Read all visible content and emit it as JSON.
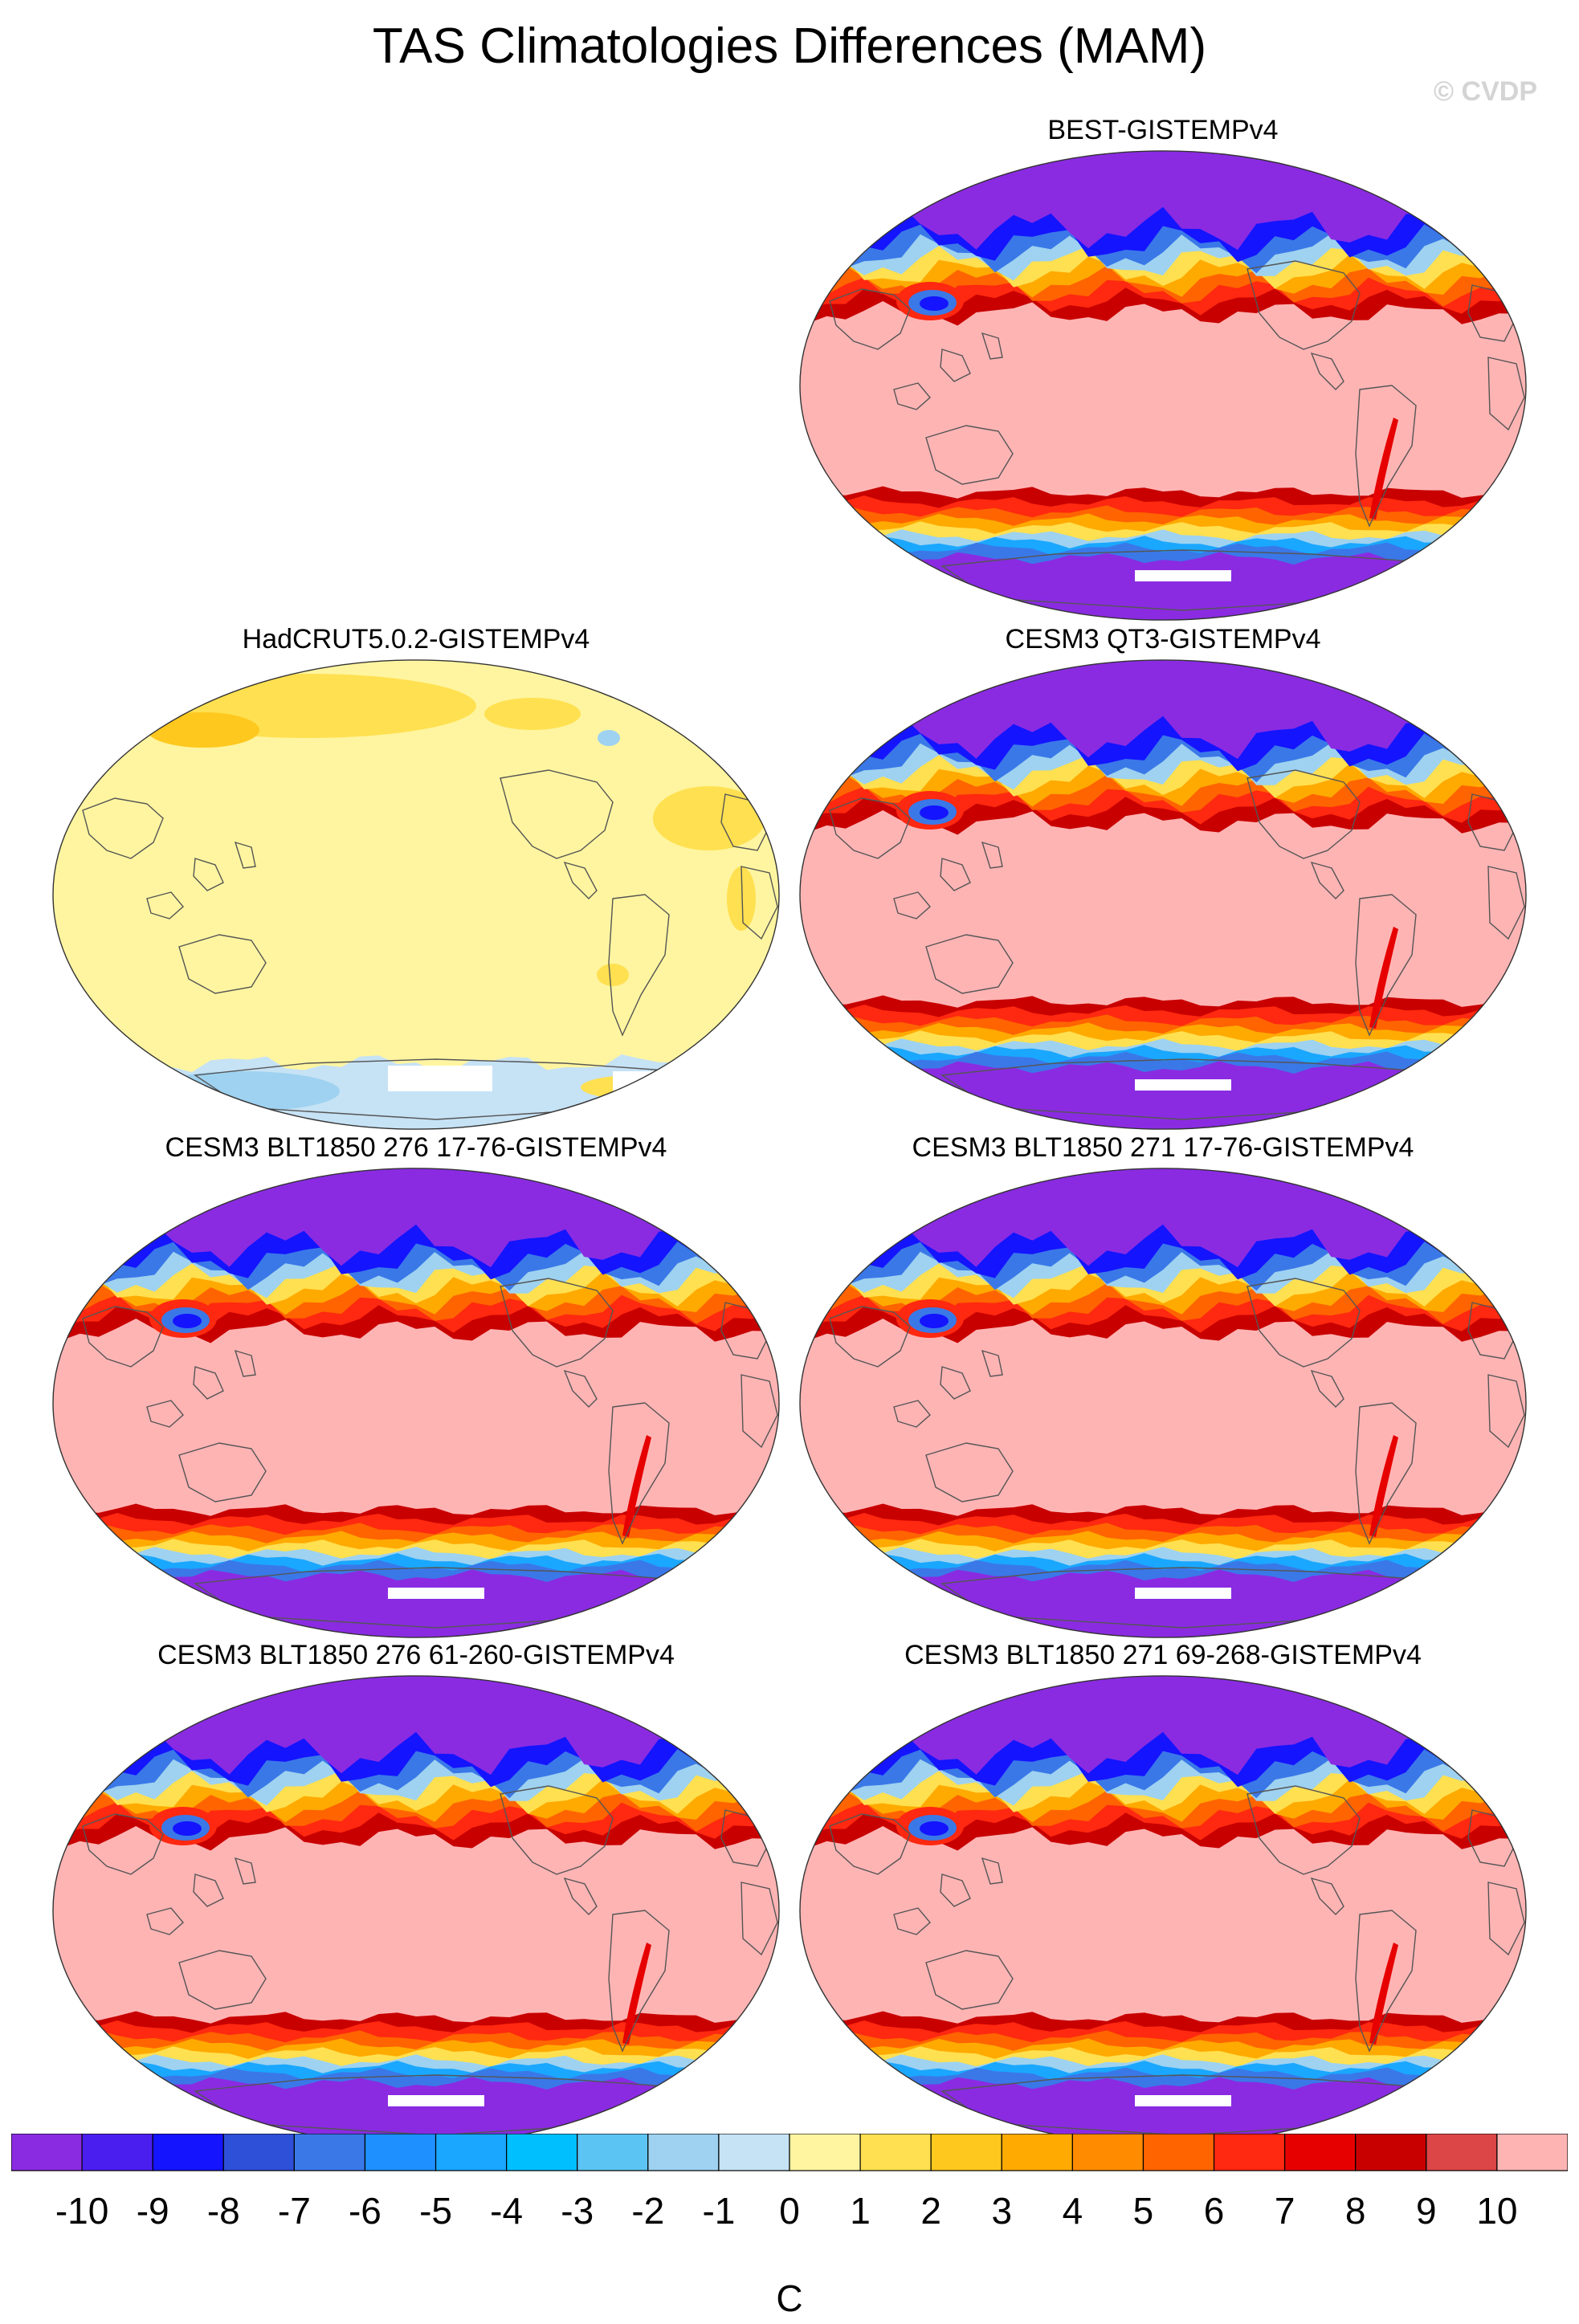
{
  "title": "TAS Climatologies Differences (MAM)",
  "copyright": "© CVDP",
  "panels": [
    {
      "label": "BEST-GISTEMPv4",
      "type": "model-like"
    },
    {
      "label": "HadCRUT5.0.2-GISTEMPv4",
      "type": "obs-like"
    },
    {
      "label": "CESM3 QT3-GISTEMPv4",
      "type": "model-like"
    },
    {
      "label": "CESM3 BLT1850 276 17-76-GISTEMPv4",
      "type": "model-like"
    },
    {
      "label": "CESM3 BLT1850 271 17-76-GISTEMPv4",
      "type": "model-like"
    },
    {
      "label": "CESM3 BLT1850 276 61-260-GISTEMPv4",
      "type": "model-like"
    },
    {
      "label": "CESM3 BLT1850 271 69-268-GISTEMPv4",
      "type": "model-like"
    }
  ],
  "colorbar": {
    "units": "C",
    "ticks": [
      "-10",
      "-9",
      "-8",
      "-7",
      "-6",
      "-5",
      "-4",
      "-3",
      "-2",
      "-1",
      "0",
      "1",
      "2",
      "3",
      "4",
      "5",
      "6",
      "7",
      "8",
      "9",
      "10"
    ],
    "colors": [
      "#8a2be2",
      "#4b1ef0",
      "#1414ff",
      "#2e4fd8",
      "#3a78e8",
      "#1e90ff",
      "#1aa7ff",
      "#00bfff",
      "#5cc4f2",
      "#9ed2f0",
      "#c6e2f5",
      "#fff5a0",
      "#ffe050",
      "#ffc81e",
      "#ffaa00",
      "#ff8c00",
      "#ff6400",
      "#ff2810",
      "#e60000",
      "#c80000",
      "#dc4646",
      "#ffb4b4"
    ]
  }
}
